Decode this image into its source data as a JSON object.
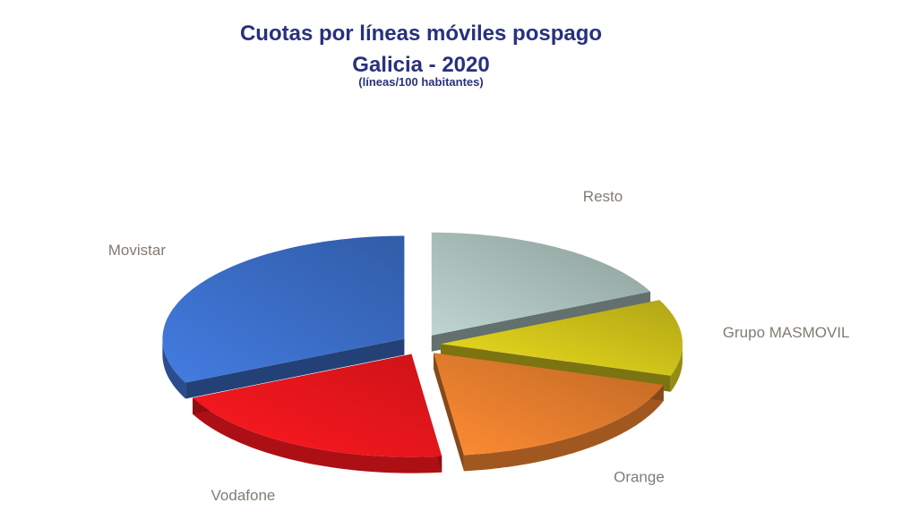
{
  "chart_data": {
    "type": "pie",
    "title_line1": "Cuotas por líneas móviles pospago",
    "title_line2": "Galicia - 2020",
    "subtitle": "(líneas/100 habitantes)",
    "series": [
      {
        "name": "Movistar",
        "value": 32.0,
        "color": "#3a6cc4"
      },
      {
        "name": "Vodafone",
        "value": 20.0,
        "color": "#f0161c"
      },
      {
        "name": "Orange",
        "value": 18.0,
        "color": "#e07a2c"
      },
      {
        "name": "Grupo MASMOVIL",
        "value": 12.0,
        "color": "#cfc21a"
      },
      {
        "name": "Resto",
        "value": 18.0,
        "color": "#a5bab5"
      }
    ]
  }
}
